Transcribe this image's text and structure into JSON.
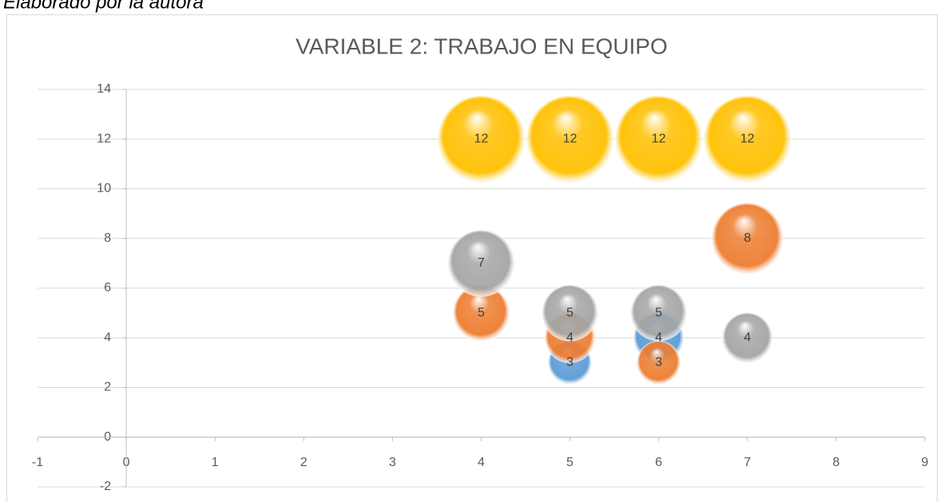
{
  "caption": "Elaborado por la autora",
  "chart_data": {
    "type": "bubble",
    "title": "VARIABLE 2: TRABAJO EN EQUIPO",
    "series": [
      {
        "color": "#5b9bd5",
        "x": [
          5,
          6
        ],
        "values": [
          3,
          4
        ],
        "sizes": [
          3,
          4
        ]
      },
      {
        "color": "#ed7d31",
        "x": [
          4,
          5,
          6,
          7
        ],
        "values": [
          5,
          4,
          3,
          8
        ],
        "sizes": [
          5,
          4,
          3,
          8
        ]
      },
      {
        "color": "#a5a5a5",
        "x": [
          4,
          5,
          6,
          7
        ],
        "values": [
          7,
          5,
          5,
          4
        ],
        "sizes": [
          7,
          5,
          5,
          4
        ]
      },
      {
        "color": "#ffc000",
        "x": [
          4,
          5,
          6,
          7
        ],
        "values": [
          12,
          12,
          12,
          12
        ],
        "sizes": [
          12,
          12,
          12,
          12
        ]
      }
    ],
    "xlim": [
      -1,
      9
    ],
    "xticks": [
      -1,
      0,
      1,
      2,
      3,
      4,
      5,
      6,
      7,
      8,
      9
    ],
    "ylim": [
      -2,
      14
    ],
    "yticks": [
      -2,
      0,
      2,
      4,
      6,
      8,
      10,
      12,
      14
    ],
    "grid": true
  }
}
